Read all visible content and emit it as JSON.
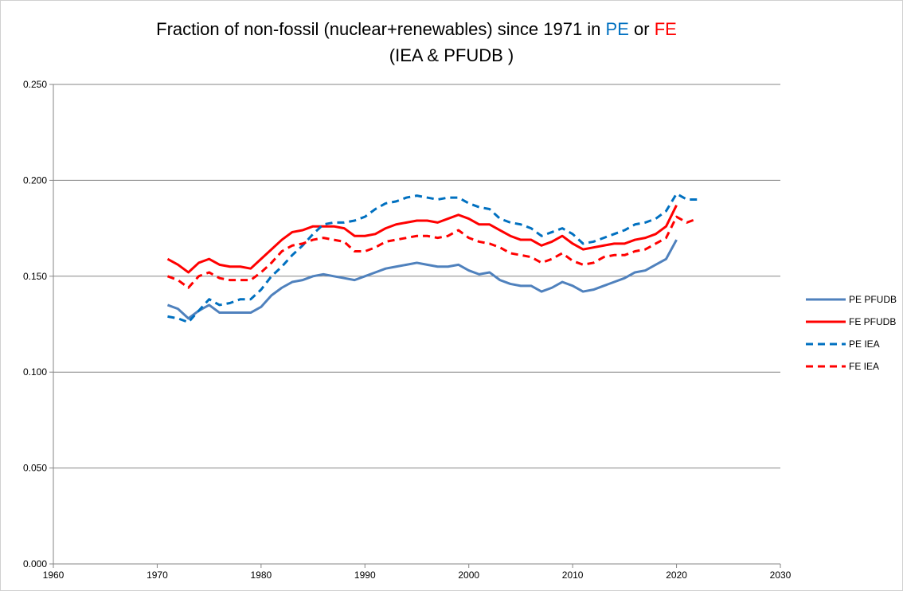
{
  "chart_data": {
    "type": "line",
    "title": [
      {
        "text": "Fraction of non-fossil (nuclear+renewables) since 1971 in ",
        "color": "#000000"
      },
      {
        "text": "PE",
        "color": "#0070c0"
      },
      {
        "text": " or ",
        "color": "#000000"
      },
      {
        "text": "FE",
        "color": "#ff0000"
      }
    ],
    "subtitle": "(IEA & PFUDB )",
    "xlim": [
      1960,
      2030
    ],
    "xticks": [
      1960,
      1970,
      1980,
      1990,
      2000,
      2010,
      2020,
      2030
    ],
    "ylim": [
      0,
      0.25
    ],
    "yticks": [
      {
        "value": 0,
        "label": "0.000"
      },
      {
        "value": 0.05,
        "label": "0.050"
      },
      {
        "value": 0.1,
        "label": "0.100"
      },
      {
        "value": 0.15,
        "label": "0.150"
      },
      {
        "value": 0.2,
        "label": "0.200"
      },
      {
        "value": 0.25,
        "label": "0.250"
      }
    ],
    "grid": true,
    "legend": "right",
    "series": [
      {
        "name": "PE PFUDB",
        "color": "#4f81bd",
        "dash": false,
        "x": [
          1971,
          1972,
          1973,
          1974,
          1975,
          1976,
          1977,
          1978,
          1979,
          1980,
          1981,
          1982,
          1983,
          1984,
          1985,
          1986,
          1987,
          1988,
          1989,
          1990,
          1991,
          1992,
          1993,
          1994,
          1995,
          1996,
          1997,
          1998,
          1999,
          2000,
          2001,
          2002,
          2003,
          2004,
          2005,
          2006,
          2007,
          2008,
          2009,
          2010,
          2011,
          2012,
          2013,
          2014,
          2015,
          2016,
          2017,
          2018,
          2019,
          2020
        ],
        "values": [
          0.135,
          0.133,
          0.128,
          0.132,
          0.135,
          0.131,
          0.131,
          0.131,
          0.131,
          0.134,
          0.14,
          0.144,
          0.147,
          0.148,
          0.15,
          0.151,
          0.15,
          0.149,
          0.148,
          0.15,
          0.152,
          0.154,
          0.155,
          0.156,
          0.157,
          0.156,
          0.155,
          0.155,
          0.156,
          0.153,
          0.151,
          0.152,
          0.148,
          0.146,
          0.145,
          0.145,
          0.142,
          0.144,
          0.147,
          0.145,
          0.142,
          0.143,
          0.145,
          0.147,
          0.149,
          0.152,
          0.153,
          0.156,
          0.159,
          0.169
        ]
      },
      {
        "name": "FE PFUDB",
        "color": "#ff0000",
        "dash": false,
        "x": [
          1971,
          1972,
          1973,
          1974,
          1975,
          1976,
          1977,
          1978,
          1979,
          1980,
          1981,
          1982,
          1983,
          1984,
          1985,
          1986,
          1987,
          1988,
          1989,
          1990,
          1991,
          1992,
          1993,
          1994,
          1995,
          1996,
          1997,
          1998,
          1999,
          2000,
          2001,
          2002,
          2003,
          2004,
          2005,
          2006,
          2007,
          2008,
          2009,
          2010,
          2011,
          2012,
          2013,
          2014,
          2015,
          2016,
          2017,
          2018,
          2019,
          2020
        ],
        "values": [
          0.159,
          0.156,
          0.152,
          0.157,
          0.159,
          0.156,
          0.155,
          0.155,
          0.154,
          0.159,
          0.164,
          0.169,
          0.173,
          0.174,
          0.176,
          0.176,
          0.176,
          0.175,
          0.171,
          0.171,
          0.172,
          0.175,
          0.177,
          0.178,
          0.179,
          0.179,
          0.178,
          0.18,
          0.182,
          0.18,
          0.177,
          0.177,
          0.174,
          0.171,
          0.169,
          0.169,
          0.166,
          0.168,
          0.171,
          0.167,
          0.164,
          0.165,
          0.166,
          0.167,
          0.167,
          0.169,
          0.17,
          0.172,
          0.176,
          0.187
        ]
      },
      {
        "name": "PE IEA",
        "color": "#0070c0",
        "dash": true,
        "x": [
          1971,
          1972,
          1973,
          1974,
          1975,
          1976,
          1977,
          1978,
          1979,
          1980,
          1981,
          1982,
          1983,
          1984,
          1985,
          1986,
          1987,
          1988,
          1989,
          1990,
          1991,
          1992,
          1993,
          1994,
          1995,
          1996,
          1997,
          1998,
          1999,
          2000,
          2001,
          2002,
          2003,
          2004,
          2005,
          2006,
          2007,
          2008,
          2009,
          2010,
          2011,
          2012,
          2013,
          2014,
          2015,
          2016,
          2017,
          2018,
          2019,
          2020,
          2021,
          2022
        ],
        "values": [
          0.129,
          0.128,
          0.126,
          0.132,
          0.138,
          0.135,
          0.136,
          0.138,
          0.138,
          0.143,
          0.15,
          0.155,
          0.161,
          0.166,
          0.172,
          0.177,
          0.178,
          0.178,
          0.179,
          0.181,
          0.185,
          0.188,
          0.189,
          0.191,
          0.192,
          0.191,
          0.19,
          0.191,
          0.191,
          0.188,
          0.186,
          0.185,
          0.18,
          0.178,
          0.177,
          0.175,
          0.171,
          0.173,
          0.175,
          0.172,
          0.167,
          0.168,
          0.17,
          0.172,
          0.174,
          0.177,
          0.178,
          0.18,
          0.184,
          0.193,
          0.19,
          0.19
        ]
      },
      {
        "name": "FE IEA",
        "color": "#ff0000",
        "dash": true,
        "x": [
          1971,
          1972,
          1973,
          1974,
          1975,
          1976,
          1977,
          1978,
          1979,
          1980,
          1981,
          1982,
          1983,
          1984,
          1985,
          1986,
          1987,
          1988,
          1989,
          1990,
          1991,
          1992,
          1993,
          1994,
          1995,
          1996,
          1997,
          1998,
          1999,
          2000,
          2001,
          2002,
          2003,
          2004,
          2005,
          2006,
          2007,
          2008,
          2009,
          2010,
          2011,
          2012,
          2013,
          2014,
          2015,
          2016,
          2017,
          2018,
          2019,
          2020,
          2021,
          2022
        ],
        "values": [
          0.15,
          0.148,
          0.144,
          0.15,
          0.152,
          0.149,
          0.148,
          0.148,
          0.148,
          0.152,
          0.157,
          0.163,
          0.166,
          0.167,
          0.169,
          0.17,
          0.169,
          0.168,
          0.163,
          0.163,
          0.165,
          0.168,
          0.169,
          0.17,
          0.171,
          0.171,
          0.17,
          0.171,
          0.174,
          0.17,
          0.168,
          0.167,
          0.165,
          0.162,
          0.161,
          0.16,
          0.157,
          0.159,
          0.162,
          0.158,
          0.156,
          0.157,
          0.16,
          0.161,
          0.161,
          0.163,
          0.164,
          0.167,
          0.17,
          0.181,
          0.178,
          0.18
        ]
      }
    ]
  }
}
